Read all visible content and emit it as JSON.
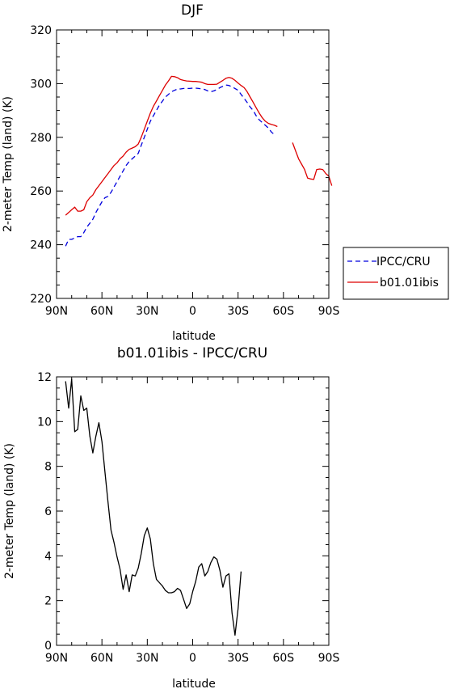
{
  "chart_data": [
    {
      "type": "line",
      "title": "DJF",
      "xlabel": "latitude",
      "ylabel": "2-meter Temp (land) (K)",
      "xlim": [
        90,
        -90
      ],
      "ylim": [
        220,
        320
      ],
      "xticks": [
        90,
        60,
        30,
        0,
        -30,
        -60,
        -90
      ],
      "xtick_labels": [
        "90N",
        "60N",
        "30N",
        "0",
        "30S",
        "60S",
        "90S"
      ],
      "yticks": [
        220,
        240,
        260,
        280,
        300,
        320
      ],
      "ytick_labels": [
        "220",
        "240",
        "260",
        "280",
        "300",
        "320"
      ],
      "grid": false,
      "legend": "right",
      "series": [
        {
          "name": "IPCC/CRU",
          "color": "#0000dd",
          "dash": "dashed",
          "segments": [
            [
              [
                84,
                239.5
              ],
              [
                82,
                242
              ],
              [
                80,
                242
              ],
              [
                78,
                242.5
              ],
              [
                76,
                243
              ],
              [
                74,
                243
              ],
              [
                72,
                244.5
              ],
              [
                70,
                246.5
              ],
              [
                68,
                248
              ],
              [
                66,
                249.5
              ],
              [
                64,
                252
              ],
              [
                62,
                254
              ],
              [
                60,
                256
              ],
              [
                58,
                257.5
              ],
              [
                56,
                258
              ],
              [
                54,
                259.5
              ],
              [
                52,
                261.5
              ],
              [
                50,
                263.5
              ],
              [
                48,
                265.5
              ],
              [
                46,
                267.5
              ],
              [
                44,
                269.5
              ],
              [
                42,
                271
              ],
              [
                40,
                272
              ],
              [
                38,
                273
              ],
              [
                36,
                274
              ],
              [
                34,
                277
              ],
              [
                32,
                280
              ],
              [
                30,
                283
              ],
              [
                28,
                286
              ],
              [
                26,
                288
              ],
              [
                24,
                290
              ],
              [
                22,
                292
              ],
              [
                20,
                293.5
              ],
              [
                18,
                295
              ],
              [
                16,
                296
              ],
              [
                14,
                297
              ],
              [
                12,
                297.5
              ],
              [
                10,
                298
              ],
              [
                8,
                298
              ],
              [
                6,
                298.2
              ],
              [
                4,
                298.2
              ],
              [
                2,
                298.2
              ],
              [
                0,
                298.3
              ],
              [
                -2,
                298.3
              ],
              [
                -4,
                298.2
              ],
              [
                -6,
                298
              ],
              [
                -8,
                297.8
              ],
              [
                -10,
                297.3
              ],
              [
                -12,
                297
              ],
              [
                -14,
                297.3
              ],
              [
                -16,
                297.8
              ],
              [
                -18,
                298.5
              ],
              [
                -20,
                299
              ],
              [
                -22,
                299.5
              ],
              [
                -24,
                299.3
              ],
              [
                -26,
                298.8
              ],
              [
                -28,
                298.2
              ],
              [
                -30,
                297.5
              ],
              [
                -32,
                296
              ],
              [
                -34,
                294.5
              ],
              [
                -36,
                293
              ],
              [
                -38,
                291.3
              ],
              [
                -40,
                290
              ],
              [
                -42,
                288
              ],
              [
                -44,
                286.5
              ],
              [
                -46,
                285.5
              ],
              [
                -48,
                284.5
              ],
              [
                -50,
                283.5
              ],
              [
                -52,
                282
              ],
              [
                -54,
                281
              ]
            ]
          ]
        },
        {
          "name": "b01.01ibis",
          "color": "#dd0000",
          "dash": "solid",
          "segments": [
            [
              [
                84,
                251
              ],
              [
                82,
                252
              ],
              [
                80,
                253
              ],
              [
                78,
                254
              ],
              [
                76,
                252.5
              ],
              [
                74,
                252.5
              ],
              [
                72,
                253
              ],
              [
                70,
                256
              ],
              [
                68,
                257.5
              ],
              [
                66,
                258.5
              ],
              [
                64,
                260.5
              ],
              [
                62,
                262
              ],
              [
                60,
                263.5
              ],
              [
                58,
                265
              ],
              [
                56,
                266.5
              ],
              [
                54,
                268
              ],
              [
                52,
                269.5
              ],
              [
                50,
                270.5
              ],
              [
                48,
                272
              ],
              [
                46,
                273
              ],
              [
                44,
                274.5
              ],
              [
                42,
                275.5
              ],
              [
                40,
                276
              ],
              [
                38,
                276.5
              ],
              [
                36,
                277.5
              ],
              [
                34,
                280
              ],
              [
                32,
                283
              ],
              [
                30,
                286
              ],
              [
                28,
                289
              ],
              [
                26,
                291.5
              ],
              [
                24,
                293.5
              ],
              [
                22,
                295.5
              ],
              [
                20,
                297.5
              ],
              [
                18,
                299.5
              ],
              [
                16,
                301
              ],
              [
                14,
                302.7
              ],
              [
                12,
                302.6
              ],
              [
                10,
                302.2
              ],
              [
                8,
                301.5
              ],
              [
                6,
                301.2
              ],
              [
                4,
                301
              ],
              [
                2,
                300.9
              ],
              [
                0,
                300.8
              ],
              [
                -2,
                300.8
              ],
              [
                -4,
                300.7
              ],
              [
                -6,
                300.5
              ],
              [
                -8,
                300
              ],
              [
                -10,
                299.7
              ],
              [
                -12,
                299.7
              ],
              [
                -14,
                299.7
              ],
              [
                -16,
                299.8
              ],
              [
                -18,
                300.5
              ],
              [
                -20,
                301.2
              ],
              [
                -22,
                302
              ],
              [
                -24,
                302.3
              ],
              [
                -26,
                302
              ],
              [
                -28,
                301.2
              ],
              [
                -30,
                300.2
              ],
              [
                -32,
                299.3
              ],
              [
                -34,
                298.5
              ],
              [
                -36,
                297
              ],
              [
                -38,
                295
              ],
              [
                -40,
                293
              ],
              [
                -42,
                291
              ],
              [
                -44,
                289
              ],
              [
                -46,
                287.3
              ],
              [
                -48,
                286
              ],
              [
                -50,
                285.2
              ],
              [
                -52,
                284.8
              ],
              [
                -54,
                284.5
              ],
              [
                -56,
                284
              ]
            ],
            [
              [
                -66,
                278
              ],
              [
                -68,
                275
              ],
              [
                -70,
                272
              ],
              [
                -72,
                270
              ],
              [
                -74,
                268
              ],
              [
                -76,
                264.8
              ],
              [
                -78,
                264.5
              ],
              [
                -80,
                264.3
              ],
              [
                -82,
                268
              ],
              [
                -84,
                268.2
              ],
              [
                -86,
                268
              ],
              [
                -88,
                266.5
              ],
              [
                -90,
                265.5
              ],
              [
                -92,
                262
              ]
            ]
          ]
        }
      ]
    },
    {
      "type": "line",
      "title": "b01.01ibis - IPCC/CRU",
      "xlabel": "latitude",
      "ylabel": "2-meter Temp (land) (K)",
      "xlim": [
        90,
        -90
      ],
      "ylim": [
        0,
        12
      ],
      "xticks": [
        90,
        60,
        30,
        0,
        -30,
        -60,
        -90
      ],
      "xtick_labels": [
        "90N",
        "60N",
        "30N",
        "0",
        "30S",
        "60S",
        "90S"
      ],
      "yticks": [
        0,
        2,
        4,
        6,
        8,
        10,
        12
      ],
      "ytick_labels": [
        "0",
        "2",
        "4",
        "6",
        "8",
        "10",
        "12"
      ],
      "grid": false,
      "series": [
        {
          "color": "#000000",
          "dash": "solid",
          "segments": [
            [
              [
                84,
                11.8
              ],
              [
                82,
                10.6
              ],
              [
                80,
                11.9
              ],
              [
                78,
                9.55
              ],
              [
                76,
                9.65
              ],
              [
                74,
                11.15
              ],
              [
                72,
                10.5
              ],
              [
                70,
                10.6
              ],
              [
                68,
                9.35
              ],
              [
                66,
                8.6
              ],
              [
                64,
                9.35
              ],
              [
                62,
                9.95
              ],
              [
                60,
                9.1
              ],
              [
                58,
                7.75
              ],
              [
                56,
                6.4
              ],
              [
                54,
                5.15
              ],
              [
                52,
                4.6
              ],
              [
                50,
                3.95
              ],
              [
                48,
                3.4
              ],
              [
                46,
                2.5
              ],
              [
                44,
                3.15
              ],
              [
                42,
                2.4
              ],
              [
                40,
                3.15
              ],
              [
                38,
                3.1
              ],
              [
                36,
                3.45
              ],
              [
                34,
                4.1
              ],
              [
                32,
                4.9
              ],
              [
                30,
                5.25
              ],
              [
                28,
                4.75
              ],
              [
                26,
                3.65
              ],
              [
                24,
                2.95
              ],
              [
                22,
                2.8
              ],
              [
                20,
                2.65
              ],
              [
                18,
                2.45
              ],
              [
                16,
                2.35
              ],
              [
                14,
                2.35
              ],
              [
                12,
                2.4
              ],
              [
                10,
                2.55
              ],
              [
                8,
                2.45
              ],
              [
                6,
                2.05
              ],
              [
                4,
                1.65
              ],
              [
                2,
                1.85
              ],
              [
                0,
                2.4
              ],
              [
                -2,
                2.85
              ],
              [
                -4,
                3.5
              ],
              [
                -6,
                3.65
              ],
              [
                -8,
                3.1
              ],
              [
                -10,
                3.3
              ],
              [
                -12,
                3.7
              ],
              [
                -14,
                3.95
              ],
              [
                -16,
                3.85
              ],
              [
                -18,
                3.35
              ],
              [
                -20,
                2.6
              ],
              [
                -22,
                3.1
              ],
              [
                -24,
                3.2
              ],
              [
                -26,
                1.45
              ],
              [
                -28,
                0.45
              ],
              [
                -30,
                1.65
              ],
              [
                -32,
                3.3
              ]
            ]
          ]
        }
      ]
    }
  ]
}
